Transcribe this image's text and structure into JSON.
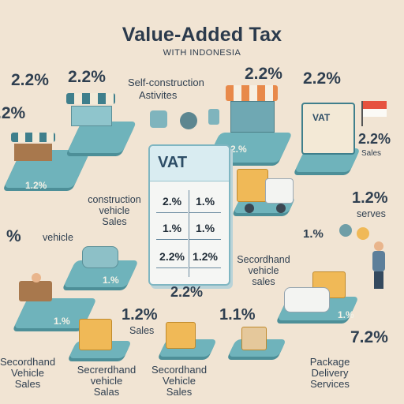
{
  "title": "Value-Added Tax",
  "subtitle": "WITH INDONESIA",
  "rates_top": [
    "2.2%",
    "2.2%",
    "2.2%",
    "2.2%"
  ],
  "rate_left_partial": ".2%",
  "rate_left_mid": "%",
  "labels": {
    "self_construction": "Self-construction",
    "activities": "Astivites",
    "construction_vehicle_sales": [
      "construction",
      "vehicle",
      "Sales"
    ],
    "vehicle": "vehicle",
    "secondhand_right": [
      "Secordhand",
      "vehicle",
      "sales"
    ],
    "sales_right": "Sales",
    "serves": "serves",
    "sales_mid": "Sales",
    "secondhand_bottom_left": [
      "Secordhand",
      "Vehicle",
      "Sales"
    ],
    "secondhand_bottom_mid": [
      "Secrerdhand",
      "vehicle",
      "Salas"
    ],
    "secondhand_bottom_center": [
      "Secordhand",
      "Vehicle",
      "Sales"
    ],
    "package": [
      "Package",
      "Delivery",
      "Services"
    ]
  },
  "rates": {
    "right_sales": "2.2%",
    "right_serves": "1.2%",
    "right_mid": "1.%",
    "mid_sales": "1.2%",
    "bottom_center": "1.1%",
    "bottom_right": "7.2%",
    "card_bottom": "2.2%",
    "platform_left": "1.2%",
    "platform_center": "2.%",
    "platform_mid": "1.%",
    "platform_bottom_left": "1.%",
    "platform_bottom_right": "1.%"
  },
  "vat_card": {
    "title": "VAT",
    "cells": [
      "2.%",
      "1.%",
      "1.%",
      "1.%",
      "2.2%",
      "1.2%"
    ]
  },
  "colors": {
    "background": "#f1e4d3",
    "platform": "#6fb3bb",
    "accent_orange": "#e8894a",
    "flag_red": "#e6523f"
  }
}
